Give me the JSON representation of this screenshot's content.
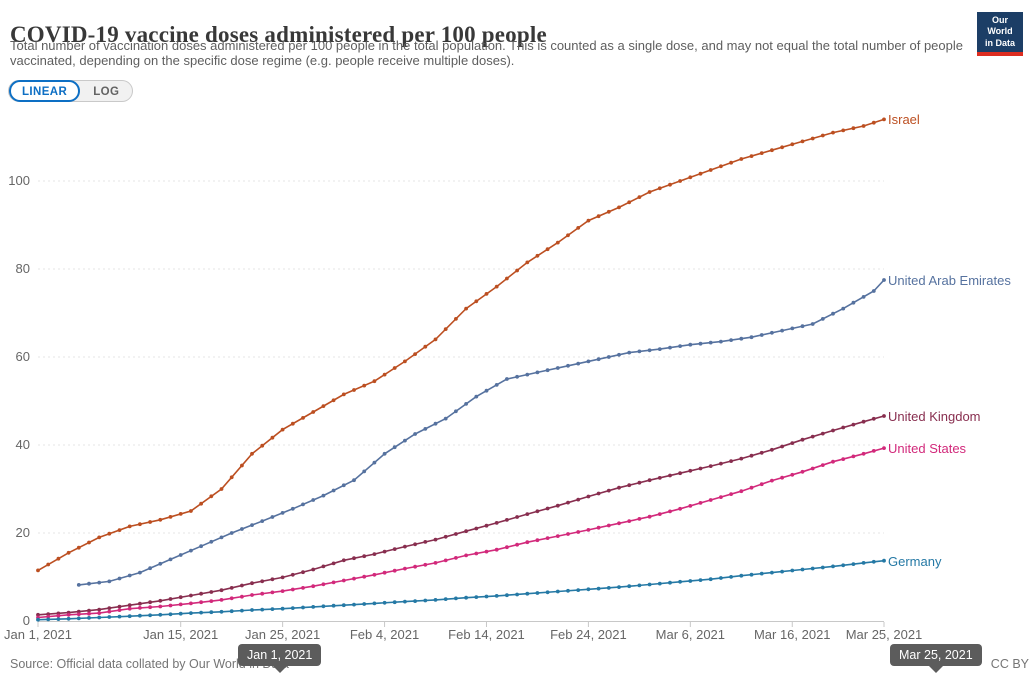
{
  "header": {
    "title": "COVID-19 vaccine doses administered per 100 people",
    "subtitle": "Total number of vaccination doses administered per 100 people in the total population. This is counted as a single dose, and may not equal the total number of people vaccinated, depending on the specific dose regime (e.g. people receive multiple doses).",
    "logo": {
      "line1": "Our World",
      "line2": "in Data",
      "bg_color": "#1c3e66",
      "accent_color": "#dd2d20"
    }
  },
  "controls": {
    "scale_toggle": {
      "options": [
        "LINEAR",
        "LOG"
      ],
      "selected": "LINEAR",
      "active_color": "#0d6fc4"
    }
  },
  "chart_data": {
    "type": "line",
    "title": "COVID-19 vaccine doses administered per 100 people",
    "xlabel": "",
    "ylabel": "",
    "markers": "daily dots on each line",
    "grid": "horizontal dashed gridlines",
    "legend_position": "labels at right end of each line",
    "x_axis": {
      "unit": "days since Jan 1, 2021",
      "tick_labels": [
        "Jan 1, 2021",
        "Jan 15, 2021",
        "Jan 25, 2021",
        "Feb 4, 2021",
        "Feb 14, 2021",
        "Feb 24, 2021",
        "Mar 6, 2021",
        "Mar 16, 2021",
        "Mar 25, 2021"
      ],
      "tick_days": [
        0,
        14,
        24,
        34,
        44,
        54,
        64,
        74,
        83
      ],
      "range_days": [
        0,
        83
      ]
    },
    "y_axis": {
      "ticks": [
        0,
        20,
        40,
        60,
        80,
        100
      ],
      "range": [
        0,
        116
      ]
    },
    "series": [
      {
        "name": "Israel",
        "color": "#bc4f21",
        "points": [
          [
            0,
            11.5
          ],
          [
            3,
            15.5
          ],
          [
            6,
            19.0
          ],
          [
            9,
            21.5
          ],
          [
            12,
            23.0
          ],
          [
            15,
            25.0
          ],
          [
            18,
            30.0
          ],
          [
            21,
            38.0
          ],
          [
            24,
            43.5
          ],
          [
            27,
            47.5
          ],
          [
            30,
            51.5
          ],
          [
            33,
            54.5
          ],
          [
            36,
            59.0
          ],
          [
            39,
            64.0
          ],
          [
            42,
            71.0
          ],
          [
            45,
            76.0
          ],
          [
            48,
            81.5
          ],
          [
            51,
            86.0
          ],
          [
            54,
            91.0
          ],
          [
            57,
            94.0
          ],
          [
            60,
            97.5
          ],
          [
            63,
            100.0
          ],
          [
            66,
            102.5
          ],
          [
            69,
            105.0
          ],
          [
            72,
            107.0
          ],
          [
            75,
            109.0
          ],
          [
            78,
            111.0
          ],
          [
            81,
            112.5
          ],
          [
            83,
            114.0
          ]
        ]
      },
      {
        "name": "United Arab Emirates",
        "color": "#56729f",
        "points": [
          [
            4,
            8.2
          ],
          [
            7,
            9.0
          ],
          [
            10,
            11.0
          ],
          [
            13,
            14.0
          ],
          [
            16,
            17.0
          ],
          [
            19,
            20.0
          ],
          [
            22,
            22.7
          ],
          [
            25,
            25.5
          ],
          [
            28,
            28.5
          ],
          [
            31,
            32.0
          ],
          [
            34,
            38.0
          ],
          [
            37,
            42.5
          ],
          [
            40,
            46.0
          ],
          [
            43,
            51.0
          ],
          [
            46,
            55.0
          ],
          [
            49,
            56.5
          ],
          [
            52,
            58.0
          ],
          [
            55,
            59.5
          ],
          [
            58,
            61.0
          ],
          [
            61,
            61.8
          ],
          [
            64,
            62.8
          ],
          [
            67,
            63.5
          ],
          [
            70,
            64.5
          ],
          [
            73,
            66.0
          ],
          [
            76,
            67.5
          ],
          [
            79,
            71.0
          ],
          [
            82,
            75.0
          ],
          [
            83,
            77.5
          ]
        ]
      },
      {
        "name": "United Kingdom",
        "color": "#882e4f",
        "points": [
          [
            0,
            1.4
          ],
          [
            3,
            1.9
          ],
          [
            6,
            2.6
          ],
          [
            9,
            3.6
          ],
          [
            12,
            4.6
          ],
          [
            15,
            5.8
          ],
          [
            18,
            7.0
          ],
          [
            21,
            8.6
          ],
          [
            24,
            9.9
          ],
          [
            27,
            11.7
          ],
          [
            30,
            13.8
          ],
          [
            33,
            15.2
          ],
          [
            36,
            16.9
          ],
          [
            39,
            18.5
          ],
          [
            42,
            20.4
          ],
          [
            45,
            22.3
          ],
          [
            48,
            24.3
          ],
          [
            51,
            26.2
          ],
          [
            54,
            28.3
          ],
          [
            57,
            30.3
          ],
          [
            60,
            32.0
          ],
          [
            63,
            33.6
          ],
          [
            66,
            35.2
          ],
          [
            69,
            36.9
          ],
          [
            72,
            38.9
          ],
          [
            75,
            41.2
          ],
          [
            78,
            43.3
          ],
          [
            81,
            45.3
          ],
          [
            83,
            46.6
          ]
        ]
      },
      {
        "name": "United States",
        "color": "#d2297b",
        "points": [
          [
            0,
            0.8
          ],
          [
            3,
            1.4
          ],
          [
            6,
            1.8
          ],
          [
            9,
            2.8
          ],
          [
            12,
            3.3
          ],
          [
            15,
            4.0
          ],
          [
            18,
            4.8
          ],
          [
            21,
            5.9
          ],
          [
            24,
            6.8
          ],
          [
            27,
            7.9
          ],
          [
            30,
            9.2
          ],
          [
            33,
            10.5
          ],
          [
            36,
            11.9
          ],
          [
            39,
            13.2
          ],
          [
            42,
            14.9
          ],
          [
            45,
            16.2
          ],
          [
            48,
            17.9
          ],
          [
            51,
            19.3
          ],
          [
            54,
            20.7
          ],
          [
            57,
            22.2
          ],
          [
            60,
            23.7
          ],
          [
            63,
            25.5
          ],
          [
            66,
            27.5
          ],
          [
            69,
            29.5
          ],
          [
            72,
            31.9
          ],
          [
            75,
            33.9
          ],
          [
            78,
            36.2
          ],
          [
            81,
            38.0
          ],
          [
            83,
            39.3
          ]
        ]
      },
      {
        "name": "Germany",
        "color": "#2579a5",
        "points": [
          [
            0,
            0.3
          ],
          [
            3,
            0.5
          ],
          [
            6,
            0.8
          ],
          [
            9,
            1.1
          ],
          [
            12,
            1.4
          ],
          [
            15,
            1.8
          ],
          [
            18,
            2.1
          ],
          [
            21,
            2.5
          ],
          [
            24,
            2.8
          ],
          [
            27,
            3.2
          ],
          [
            30,
            3.6
          ],
          [
            33,
            4.0
          ],
          [
            36,
            4.4
          ],
          [
            39,
            4.8
          ],
          [
            42,
            5.3
          ],
          [
            45,
            5.7
          ],
          [
            48,
            6.2
          ],
          [
            51,
            6.7
          ],
          [
            54,
            7.2
          ],
          [
            57,
            7.7
          ],
          [
            60,
            8.3
          ],
          [
            63,
            8.9
          ],
          [
            66,
            9.5
          ],
          [
            69,
            10.3
          ],
          [
            72,
            11.0
          ],
          [
            75,
            11.7
          ],
          [
            78,
            12.4
          ],
          [
            81,
            13.2
          ],
          [
            83,
            13.7
          ]
        ]
      }
    ]
  },
  "timeline": {
    "start_label": "Jan 1, 2021",
    "end_label": "Mar 25, 2021"
  },
  "footer": {
    "source": "Source: Official data collated by Our World in Data",
    "license": "CC BY"
  }
}
